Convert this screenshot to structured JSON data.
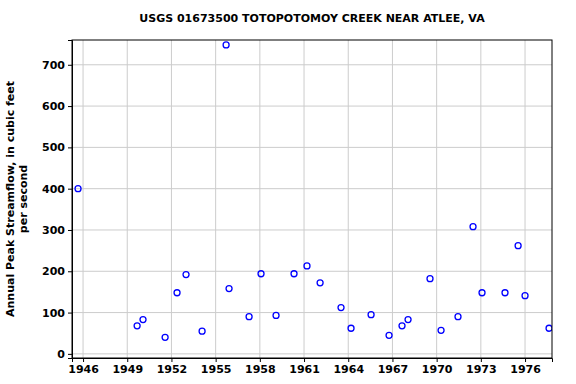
{
  "chart_data": {
    "type": "scatter",
    "title": "USGS 01673500 TOTOPOTOMOY CREEK NEAR ATLEE, VA",
    "y_label": [
      "Annual Peak Streamflow, in cubic feet",
      "per second"
    ],
    "x": [
      1945.66,
      1949.67,
      1950.07,
      1951.57,
      1952.38,
      1952.99,
      1954.08,
      1955.71,
      1955.91,
      1957.27,
      1958.08,
      1959.1,
      1960.32,
      1961.2,
      1962.09,
      1963.51,
      1964.19,
      1965.55,
      1966.77,
      1967.65,
      1968.06,
      1969.55,
      1970.3,
      1971.45,
      1972.47,
      1973.08,
      1974.64,
      1975.53,
      1976.0,
      1977.63
    ],
    "values": [
      400,
      68,
      83,
      40,
      148,
      192,
      55,
      748,
      158,
      90,
      194,
      93,
      194,
      213,
      172,
      112,
      62,
      95,
      45,
      68,
      83,
      182,
      57,
      90,
      308,
      148,
      148,
      262,
      141,
      62
    ],
    "color": "#0000ff",
    "marker": "circle-open",
    "xlim": [
      1945.25,
      1977.83
    ],
    "xticks": [
      1946,
      1949,
      1952,
      1955,
      1958,
      1961,
      1964,
      1967,
      1970,
      1973,
      1976
    ],
    "ylim": [
      -10,
      760
    ],
    "yticks": [
      0,
      100,
      200,
      300,
      400,
      500,
      600,
      700
    ],
    "grid": true
  }
}
